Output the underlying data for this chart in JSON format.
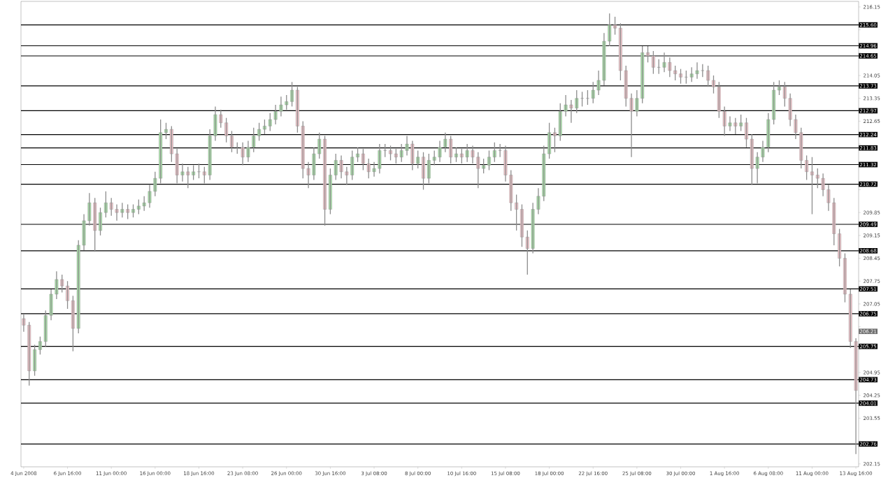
{
  "chart_data": {
    "type": "candlestick",
    "categories": [
      "4 Jun 2008",
      null,
      null,
      null,
      null,
      null,
      null,
      null,
      "6 Jun 16:00",
      null,
      null,
      null,
      null,
      null,
      null,
      null,
      "11 Jun 00:00",
      null,
      null,
      null,
      null,
      null,
      null,
      null,
      "16 Jun 00:00",
      null,
      null,
      null,
      null,
      null,
      null,
      null,
      "18 Jun 16:00",
      null,
      null,
      null,
      null,
      null,
      null,
      null,
      "23 Jun 08:00",
      null,
      null,
      null,
      null,
      null,
      null,
      null,
      "26 Jun 00:00",
      null,
      null,
      null,
      null,
      null,
      null,
      null,
      "30 Jun 16:00",
      null,
      null,
      null,
      null,
      null,
      null,
      null,
      "3 Jul 08:00",
      null,
      null,
      null,
      null,
      null,
      null,
      null,
      "8 Jul 00:00",
      null,
      null,
      null,
      null,
      null,
      null,
      null,
      "10 Jul 16:00",
      null,
      null,
      null,
      null,
      null,
      null,
      null,
      "15 Jul 08:00",
      null,
      null,
      null,
      null,
      null,
      null,
      null,
      "18 Jul 00:00",
      null,
      null,
      null,
      null,
      null,
      null,
      null,
      "22 Jul 16:00",
      null,
      null,
      null,
      null,
      null,
      null,
      null,
      "25 Jul 08:00",
      null,
      null,
      null,
      null,
      null,
      null,
      null,
      "30 Jul 00:00",
      null,
      null,
      null,
      null,
      null,
      null,
      null,
      "1 Aug 16:00",
      null,
      null,
      null,
      null,
      null,
      null,
      null,
      "6 Aug 08:00",
      null,
      null,
      null,
      null,
      null,
      null,
      null,
      "11 Aug 00:00",
      null,
      null,
      null,
      null,
      null,
      null,
      null,
      "13 Aug 16:00"
    ],
    "ohlc": [
      [
        206.6,
        206.75,
        206.2,
        206.4
      ],
      [
        206.4,
        206.5,
        204.55,
        205.0
      ],
      [
        205.0,
        205.8,
        204.85,
        205.65
      ],
      [
        205.65,
        206.05,
        205.5,
        205.9
      ],
      [
        205.9,
        206.85,
        205.75,
        206.7
      ],
      [
        206.7,
        207.5,
        206.55,
        207.35
      ],
      [
        207.35,
        208.05,
        207.2,
        207.8
      ],
      [
        207.8,
        207.95,
        207.4,
        207.6
      ],
      [
        207.6,
        207.75,
        206.9,
        207.15
      ],
      [
        207.15,
        207.3,
        205.6,
        206.3
      ],
      [
        206.3,
        209.0,
        206.15,
        208.85
      ],
      [
        208.85,
        209.8,
        208.7,
        209.6
      ],
      [
        209.6,
        210.45,
        209.45,
        210.15
      ],
      [
        210.15,
        210.3,
        208.65,
        209.3
      ],
      [
        209.3,
        210.0,
        209.15,
        209.85
      ],
      [
        209.85,
        210.5,
        209.7,
        210.15
      ],
      [
        210.15,
        210.3,
        209.75,
        209.95
      ],
      [
        209.95,
        210.1,
        209.6,
        209.85
      ],
      [
        209.85,
        210.15,
        209.7,
        209.95
      ],
      [
        209.95,
        210.1,
        209.65,
        209.85
      ],
      [
        209.85,
        210.1,
        209.7,
        209.95
      ],
      [
        209.95,
        210.25,
        209.8,
        210.05
      ],
      [
        210.05,
        210.35,
        209.9,
        210.15
      ],
      [
        210.15,
        210.7,
        210.0,
        210.5
      ],
      [
        210.5,
        211.1,
        210.35,
        210.9
      ],
      [
        210.9,
        212.7,
        210.75,
        212.3
      ],
      [
        212.3,
        212.6,
        212.1,
        212.4
      ],
      [
        212.4,
        212.5,
        211.4,
        211.65
      ],
      [
        211.65,
        211.8,
        210.75,
        211.0
      ],
      [
        211.0,
        211.35,
        210.8,
        211.1
      ],
      [
        211.1,
        211.25,
        210.6,
        211.0
      ],
      [
        211.0,
        211.3,
        210.85,
        211.1
      ],
      [
        211.1,
        211.35,
        210.9,
        211.1
      ],
      [
        211.1,
        211.25,
        210.75,
        211.0
      ],
      [
        211.0,
        212.4,
        210.85,
        212.2
      ],
      [
        212.2,
        213.1,
        212.05,
        212.85
      ],
      [
        212.85,
        213.0,
        212.45,
        212.6
      ],
      [
        212.6,
        212.75,
        212.0,
        212.2
      ],
      [
        212.2,
        212.35,
        211.7,
        211.85
      ],
      [
        211.85,
        212.0,
        211.65,
        211.85
      ],
      [
        211.85,
        212.0,
        211.3,
        211.55
      ],
      [
        211.55,
        212.05,
        211.4,
        211.85
      ],
      [
        211.85,
        212.45,
        211.7,
        212.2
      ],
      [
        212.2,
        212.6,
        212.05,
        212.4
      ],
      [
        212.4,
        212.7,
        212.25,
        212.5
      ],
      [
        212.5,
        212.9,
        212.35,
        212.7
      ],
      [
        212.7,
        213.15,
        212.55,
        212.95
      ],
      [
        212.95,
        213.4,
        212.8,
        213.15
      ],
      [
        213.15,
        213.45,
        213.0,
        213.25
      ],
      [
        213.25,
        213.85,
        213.1,
        213.6
      ],
      [
        213.6,
        213.7,
        212.3,
        212.5
      ],
      [
        212.5,
        212.65,
        210.9,
        211.2
      ],
      [
        211.2,
        211.4,
        210.6,
        211.0
      ],
      [
        211.0,
        211.85,
        210.85,
        211.65
      ],
      [
        211.65,
        212.3,
        211.5,
        212.1
      ],
      [
        212.1,
        212.2,
        209.45,
        209.95
      ],
      [
        209.95,
        211.2,
        209.8,
        211.0
      ],
      [
        211.0,
        211.65,
        210.85,
        211.45
      ],
      [
        211.45,
        211.6,
        210.9,
        211.1
      ],
      [
        211.1,
        211.25,
        210.7,
        211.0
      ],
      [
        211.0,
        211.75,
        210.85,
        211.55
      ],
      [
        211.55,
        211.85,
        211.4,
        211.65
      ],
      [
        211.65,
        211.8,
        211.15,
        211.35
      ],
      [
        211.35,
        211.5,
        210.9,
        211.1
      ],
      [
        211.1,
        211.4,
        210.95,
        211.2
      ],
      [
        211.2,
        211.95,
        211.05,
        211.75
      ],
      [
        211.75,
        211.95,
        211.55,
        211.75
      ],
      [
        211.75,
        211.9,
        211.45,
        211.65
      ],
      [
        211.65,
        211.8,
        211.35,
        211.55
      ],
      [
        211.55,
        211.95,
        211.4,
        211.75
      ],
      [
        211.75,
        212.2,
        211.6,
        211.95
      ],
      [
        211.95,
        212.05,
        211.15,
        211.35
      ],
      [
        211.35,
        211.75,
        211.2,
        211.55
      ],
      [
        211.55,
        211.7,
        210.55,
        210.9
      ],
      [
        210.9,
        211.65,
        210.75,
        211.45
      ],
      [
        211.45,
        211.75,
        211.3,
        211.55
      ],
      [
        211.55,
        212.05,
        211.4,
        211.85
      ],
      [
        211.85,
        212.3,
        211.7,
        212.1
      ],
      [
        212.1,
        212.2,
        211.35,
        211.55
      ],
      [
        211.55,
        211.85,
        211.4,
        211.65
      ],
      [
        211.65,
        211.8,
        211.35,
        211.55
      ],
      [
        211.55,
        211.95,
        211.4,
        211.75
      ],
      [
        211.75,
        211.9,
        211.35,
        211.55
      ],
      [
        211.55,
        211.7,
        210.6,
        211.2
      ],
      [
        211.2,
        211.5,
        211.05,
        211.3
      ],
      [
        211.3,
        211.75,
        211.15,
        211.55
      ],
      [
        211.55,
        212.0,
        211.4,
        211.75
      ],
      [
        211.75,
        211.95,
        211.55,
        211.75
      ],
      [
        211.75,
        211.9,
        210.8,
        211.0
      ],
      [
        211.0,
        211.15,
        209.9,
        210.15
      ],
      [
        210.15,
        210.4,
        209.3,
        209.95
      ],
      [
        209.95,
        210.1,
        208.8,
        209.1
      ],
      [
        209.1,
        209.3,
        207.95,
        208.75
      ],
      [
        208.75,
        210.15,
        208.6,
        209.95
      ],
      [
        209.95,
        210.6,
        209.8,
        210.35
      ],
      [
        210.35,
        211.9,
        210.2,
        211.65
      ],
      [
        211.65,
        212.6,
        211.5,
        212.3
      ],
      [
        212.3,
        212.45,
        211.7,
        212.2
      ],
      [
        212.2,
        213.2,
        212.05,
        212.95
      ],
      [
        212.95,
        213.45,
        212.8,
        213.15
      ],
      [
        213.15,
        213.3,
        212.6,
        213.05
      ],
      [
        213.05,
        213.6,
        212.9,
        213.35
      ],
      [
        213.35,
        213.55,
        213.1,
        213.35
      ],
      [
        213.35,
        213.6,
        213.15,
        213.35
      ],
      [
        213.35,
        213.85,
        213.2,
        213.6
      ],
      [
        213.6,
        214.2,
        213.45,
        213.9
      ],
      [
        213.9,
        215.35,
        213.75,
        215.1
      ],
      [
        215.1,
        215.95,
        214.95,
        215.6
      ],
      [
        215.6,
        215.85,
        215.3,
        215.5
      ],
      [
        215.5,
        215.65,
        213.9,
        214.2
      ],
      [
        214.2,
        214.35,
        213.1,
        213.35
      ],
      [
        213.35,
        213.5,
        211.55,
        212.95
      ],
      [
        212.95,
        213.6,
        212.8,
        213.35
      ],
      [
        213.35,
        214.95,
        213.2,
        214.75
      ],
      [
        214.75,
        214.95,
        214.45,
        214.65
      ],
      [
        214.65,
        214.8,
        214.1,
        214.3
      ],
      [
        214.3,
        214.55,
        214.1,
        214.3
      ],
      [
        214.3,
        214.75,
        214.15,
        214.45
      ],
      [
        214.45,
        214.6,
        214.0,
        214.2
      ],
      [
        214.2,
        214.35,
        213.9,
        214.1
      ],
      [
        214.1,
        214.25,
        213.8,
        214.0
      ],
      [
        214.0,
        214.2,
        213.8,
        214.0
      ],
      [
        214.0,
        214.3,
        213.85,
        214.1
      ],
      [
        214.1,
        214.45,
        213.95,
        214.2
      ],
      [
        214.2,
        214.4,
        214.0,
        214.2
      ],
      [
        214.2,
        214.35,
        213.7,
        213.9
      ],
      [
        213.9,
        214.05,
        213.5,
        213.7
      ],
      [
        213.7,
        213.85,
        212.75,
        212.95
      ],
      [
        212.95,
        213.1,
        212.2,
        212.5
      ],
      [
        212.5,
        212.8,
        212.35,
        212.6
      ],
      [
        212.6,
        212.75,
        212.25,
        212.5
      ],
      [
        212.5,
        212.85,
        212.35,
        212.6
      ],
      [
        212.6,
        212.75,
        211.85,
        212.1
      ],
      [
        212.1,
        212.25,
        210.7,
        211.2
      ],
      [
        211.2,
        211.7,
        210.75,
        211.55
      ],
      [
        211.55,
        212.05,
        211.4,
        211.85
      ],
      [
        211.85,
        212.9,
        211.7,
        212.7
      ],
      [
        212.7,
        213.85,
        212.55,
        213.6
      ],
      [
        213.6,
        213.9,
        213.45,
        213.7
      ],
      [
        213.7,
        213.85,
        213.1,
        213.35
      ],
      [
        213.35,
        213.5,
        212.5,
        212.7
      ],
      [
        212.7,
        212.85,
        212.1,
        212.3
      ],
      [
        212.3,
        212.45,
        211.2,
        211.45
      ],
      [
        211.45,
        211.6,
        210.85,
        211.1
      ],
      [
        211.1,
        211.55,
        209.8,
        211.0
      ],
      [
        211.0,
        211.2,
        210.6,
        210.9
      ],
      [
        210.9,
        211.05,
        210.35,
        210.55
      ],
      [
        210.55,
        210.7,
        209.9,
        210.15
      ],
      [
        210.15,
        210.3,
        208.85,
        209.2
      ],
      [
        209.2,
        209.35,
        208.2,
        208.45
      ],
      [
        208.45,
        208.6,
        207.1,
        207.35
      ],
      [
        207.35,
        207.5,
        205.7,
        205.9
      ],
      [
        205.9,
        206.0,
        202.45,
        204.4
      ]
    ],
    "ylim": [
      202.06,
      216.32
    ],
    "yticks": [
      216.15,
      {
        "value": 215.45,
        "label": null
      },
      {
        "value": 214.75,
        "label": null
      },
      214.05,
      213.35,
      212.65,
      {
        "value": 211.95,
        "label": null
      },
      {
        "value": 211.25,
        "label": null
      },
      {
        "value": 210.55,
        "label": null
      },
      209.85,
      209.15,
      208.45,
      207.75,
      207.05,
      {
        "value": 206.35,
        "label": null
      },
      {
        "value": 205.65,
        "label": null
      },
      204.95,
      204.25,
      203.55,
      {
        "value": 202.85,
        "label": null
      },
      202.15
    ],
    "ref_lines": [
      {
        "axis": "y",
        "value": 215.6,
        "label": "215.60"
      },
      {
        "axis": "y",
        "value": 214.96,
        "label": "214.96"
      },
      {
        "axis": "y",
        "value": 214.65,
        "label": "214.65"
      },
      {
        "axis": "y",
        "value": 213.73,
        "label": "213.73"
      },
      {
        "axis": "y",
        "value": 212.97,
        "label": "212.97"
      },
      {
        "axis": "y",
        "value": 212.24,
        "label": "212.24"
      },
      {
        "axis": "y",
        "value": 211.83,
        "label": "211.83"
      },
      {
        "axis": "y",
        "value": 211.32,
        "label": "211.32"
      },
      {
        "axis": "y",
        "value": 210.72,
        "label": "210.72"
      },
      {
        "axis": "y",
        "value": 209.49,
        "label": "209.49"
      },
      {
        "axis": "y",
        "value": 208.68,
        "label": "208.68"
      },
      {
        "axis": "y",
        "value": 207.51,
        "label": "207.51"
      },
      {
        "axis": "y",
        "value": 206.75,
        "label": "206.75"
      },
      {
        "axis": "y",
        "value": 205.75,
        "label": "205.75"
      },
      {
        "axis": "y",
        "value": 204.73,
        "label": "204.73"
      },
      {
        "axis": "y",
        "value": 204.01,
        "label": "204.01"
      },
      {
        "axis": "y",
        "value": 202.76,
        "label": "202.76"
      }
    ],
    "annotations": [
      "206.21"
    ]
  }
}
